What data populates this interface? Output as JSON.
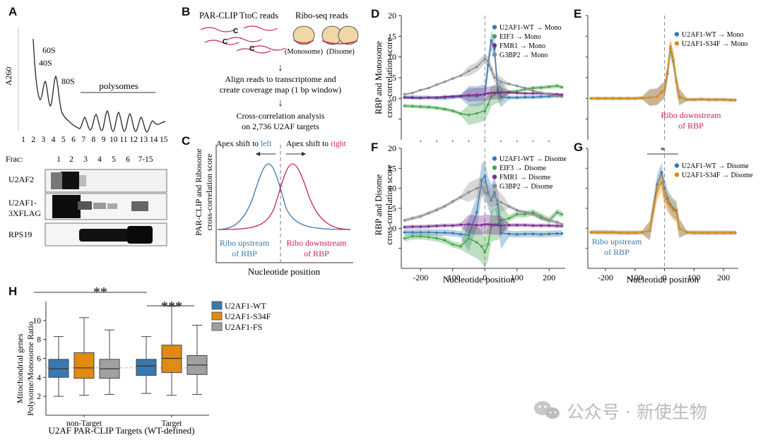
{
  "panels": {
    "A": {
      "letter": "A",
      "ylabel": "A260",
      "peaks": [
        "40S",
        "60S",
        "80S"
      ],
      "polysomes": "polysomes",
      "fractions_axis": [
        "1",
        "2",
        "3",
        "4",
        "5",
        "6",
        "7",
        "8",
        "9",
        "10",
        "11",
        "12",
        "13",
        "14",
        "15"
      ],
      "frac_label": "Frac:",
      "frac_cols": [
        "1",
        "2",
        "3",
        "4",
        "5",
        "6",
        "7-15"
      ],
      "blots": [
        "U2AF2",
        "U2AF1-\n3XFLAG",
        "RPS19"
      ],
      "blot_label_1a": "U2AF1-",
      "blot_label_1b": "3XFLAG"
    },
    "B": {
      "letter": "B",
      "parclip": "PAR-CLIP TtoC reads",
      "riboseq": "Ribo-seq reads",
      "c": "C",
      "monosome": "(Monosome)",
      "disome": "(Disome)",
      "arrow": "↓",
      "step1a": "Align reads to transcriptome and",
      "step1b": "create coverage map (1 bp window)",
      "step2a": "Cross-correlation analysis",
      "step2b": "on 2,736 U2AF targets"
    },
    "C": {
      "letter": "C",
      "left_shift": "Apex shift to ",
      "left_word": "left",
      "right_shift": "Apex shift to ",
      "right_word": "right",
      "ylabel1": "PAR-CLIP and Ribosome",
      "ylabel2": "cross-correlation score",
      "xlabel": "Nucleotide position",
      "up1": "Ribo upstream",
      "up2": "of RBP",
      "down1": "Ribo downstream",
      "down2": "of RBP"
    },
    "D": {
      "letter": "D",
      "ylabel1": "RBP and Monosome",
      "ylabel2": "cross-correlation score"
    },
    "E": {
      "letter": "E",
      "note1": "Ribo downstream",
      "note2": "of RBP"
    },
    "F": {
      "letter": "F",
      "ylabel1": "RBP and Disome",
      "ylabel2": "cross-correlation score",
      "xlabel": "Nucleotide position"
    },
    "G": {
      "letter": "G",
      "star": "*",
      "note1": "Ribo upstream",
      "note2": "of RBP",
      "xlabel": "Nucleotide position"
    },
    "H": {
      "letter": "H",
      "sig1": "**",
      "sig2": "***",
      "ylabel1": "Mitochondrial genes",
      "ylabel2": "Polysome/Monosome Ratio",
      "xlabel": "U2AF PAR-CLIP Targets (WT-defined)",
      "groups": [
        "non-Target",
        "Target"
      ]
    }
  },
  "colors": {
    "wt": "#3a78b0",
    "s34f": "#e08a12",
    "fs": "#a0a0a0",
    "eif3": "#46a54b",
    "fmr1": "#7b2d8e",
    "g3bp2": "#8c8c8c",
    "red": "#c8234e"
  },
  "watermark": "公众号 · 新使生物",
  "chart_data": [
    {
      "id": "D",
      "type": "line",
      "title": "",
      "xlabel": "",
      "ylabel": "RBP and Monosome cross-correlation score",
      "xlim": [
        -260,
        250
      ],
      "ylim": [
        -10,
        20
      ],
      "yticks": [
        0,
        5,
        10,
        15,
        20
      ],
      "x": [
        -250,
        -225,
        -200,
        -175,
        -150,
        -125,
        -100,
        -75,
        -50,
        -25,
        0,
        10,
        20,
        30,
        40,
        50,
        75,
        100,
        125,
        150,
        175,
        200,
        225,
        240
      ],
      "series": [
        {
          "name": "U2AF1-WT → Mono",
          "color": "#3a78b0",
          "values": [
            0.3,
            0.3,
            0.2,
            0.2,
            0.1,
            0.1,
            0.3,
            0.4,
            0.6,
            0.5,
            1,
            8,
            14,
            12,
            2,
            0.3,
            0.2,
            0.2,
            0.3,
            0.3,
            0.4,
            0.5,
            0.6,
            0.6
          ]
        },
        {
          "name": "EIF3 → Mono",
          "color": "#46a54b",
          "values": [
            -1.8,
            -1.9,
            -2,
            -2.1,
            -2.3,
            -2.6,
            -3,
            -3.7,
            -4,
            -3.6,
            -3,
            -1.5,
            0.5,
            1,
            1.3,
            1.5,
            1.6,
            1.7,
            2.2,
            2.5,
            2.6,
            2.8,
            3,
            2.7
          ]
        },
        {
          "name": "FMR1 → Mono",
          "color": "#7b2d8e",
          "values": [
            0.2,
            0.1,
            0.1,
            0.2,
            0.2,
            0.4,
            0.5,
            0.6,
            0.8,
            0.9,
            1,
            1.2,
            1.3,
            1.4,
            1.4,
            1.4,
            1.4,
            1.3,
            1.2,
            1.2,
            1.2,
            1.1,
            1,
            0.9
          ]
        },
        {
          "name": "G3BP2 → Mono",
          "color": "#8c8c8c",
          "values": [
            1,
            1.3,
            2,
            2.5,
            3.3,
            4,
            4.8,
            5.5,
            6.6,
            7.6,
            9.6,
            9,
            7,
            5,
            4.5,
            4,
            3.5,
            3,
            2.5,
            1.8,
            1.4,
            1,
            0.6,
            0.4
          ]
        }
      ]
    },
    {
      "id": "E",
      "type": "line",
      "xlim": [
        -260,
        250
      ],
      "ylim": [
        -10,
        20
      ],
      "x": [
        -250,
        -225,
        -200,
        -175,
        -150,
        -125,
        -100,
        -75,
        -50,
        -25,
        -10,
        0,
        10,
        20,
        30,
        40,
        50,
        75,
        100,
        125,
        150,
        175,
        200,
        225,
        240
      ],
      "series": [
        {
          "name": "U2AF1-WT → Mono",
          "color": "#3a78b0",
          "values": [
            0,
            0,
            0,
            0,
            0,
            0,
            0,
            0.1,
            0.2,
            0.4,
            1.5,
            2,
            6,
            12,
            9,
            4,
            0.3,
            -0.3,
            -0.3,
            -0.2,
            -0.3,
            -0.3,
            -0.3,
            -0.4,
            -0.4
          ]
        },
        {
          "name": "U2AF1-S34F → Mono",
          "color": "#e08a12",
          "values": [
            0,
            0,
            0,
            0,
            0,
            0,
            0,
            0.1,
            0.2,
            0.4,
            1.4,
            2,
            6.5,
            12.5,
            9.5,
            4,
            0.4,
            -0.3,
            -0.3,
            -0.2,
            -0.3,
            -0.3,
            -0.3,
            -0.4,
            -0.4
          ]
        }
      ]
    },
    {
      "id": "F",
      "type": "line",
      "xlabel": "Nucleotide position",
      "ylabel": "RBP and Disome cross-correlation score",
      "xlim": [
        -260,
        250
      ],
      "ylim": [
        -10,
        20
      ],
      "yticks": [
        0,
        5,
        10,
        15,
        20
      ],
      "xticks": [
        -200,
        -100,
        0,
        100,
        200
      ],
      "x": [
        -250,
        -225,
        -200,
        -175,
        -150,
        -125,
        -100,
        -75,
        -50,
        -25,
        -10,
        0,
        10,
        20,
        30,
        40,
        50,
        75,
        100,
        125,
        150,
        175,
        200,
        225,
        240
      ],
      "series": [
        {
          "name": "U2AF1-WT → Disome",
          "color": "#3a78b0",
          "values": [
            -1,
            -1,
            -1,
            -1,
            -1.1,
            -1.1,
            -1.2,
            -1.5,
            -1.7,
            4,
            12,
            13,
            9,
            7,
            9,
            6,
            -1.2,
            -1.4,
            -1.5,
            -1.4,
            -1.4,
            -1.5,
            -1.4,
            -1.3,
            -1.3
          ]
        },
        {
          "name": "EIF3 → Disome",
          "color": "#46a54b",
          "values": [
            -2.5,
            -2,
            -2,
            -2.2,
            -2.5,
            -3,
            -4,
            -4.5,
            -2.5,
            -3.5,
            -4.5,
            -6,
            -4,
            0.5,
            1,
            1,
            2,
            2.5,
            3.5,
            3.5,
            4,
            3,
            2,
            4,
            3.5
          ]
        },
        {
          "name": "FMR1 → Disome",
          "color": "#7b2d8e",
          "values": [
            0.3,
            0.4,
            0.4,
            0.5,
            0.6,
            0.7,
            0.7,
            0.9,
            1,
            0.8,
            0.8,
            1,
            1,
            0.9,
            0.8,
            0.8,
            0.7,
            0.8,
            0.8,
            0.8,
            0.7,
            0.7,
            0.7,
            0.6,
            0.6
          ]
        },
        {
          "name": "G3BP2 → Disome",
          "color": "#8c8c8c",
          "values": [
            2,
            2.5,
            3,
            3.8,
            4.6,
            5.5,
            6.7,
            7.8,
            9,
            10,
            10.5,
            9,
            8.5,
            7.5,
            8,
            7,
            6.5,
            5.5,
            4.5,
            4,
            3.5,
            2.5,
            2,
            1.5,
            1
          ]
        }
      ]
    },
    {
      "id": "G",
      "type": "line",
      "xlabel": "Nucleotide position",
      "xlim": [
        -260,
        250
      ],
      "ylim": [
        -10,
        20
      ],
      "xticks": [
        -200,
        -100,
        0,
        100,
        200
      ],
      "annotation": "*",
      "x": [
        -250,
        -225,
        -200,
        -175,
        -150,
        -125,
        -100,
        -75,
        -50,
        -25,
        -10,
        0,
        10,
        20,
        30,
        40,
        50,
        75,
        100,
        125,
        150,
        175,
        200,
        225,
        240
      ],
      "series": [
        {
          "name": "U2AF1-WT → Disome",
          "color": "#3a78b0",
          "values": [
            -1,
            -1,
            -1,
            -1,
            -1.1,
            -1.1,
            -1.1,
            -1,
            -0.6,
            11,
            14,
            10,
            7.5,
            6,
            5,
            4.5,
            0,
            -1,
            -1.1,
            -1.1,
            -1.1,
            -1.1,
            -1.1,
            -1.1,
            -1.1
          ]
        },
        {
          "name": "U2AF1-S34F → Disome",
          "color": "#e08a12",
          "values": [
            -1,
            -1,
            -1,
            -1,
            -1.1,
            -1.1,
            -1.1,
            -1,
            -0.6,
            9.5,
            11.5,
            8,
            6.5,
            5.5,
            4.5,
            4,
            0,
            -1,
            -1.1,
            -1.1,
            -1.1,
            -1.1,
            -1.1,
            -1.1,
            -1.1
          ]
        }
      ]
    },
    {
      "id": "H",
      "type": "box",
      "xlabel": "U2AF PAR-CLIP Targets (WT-defined)",
      "ylabel": "Mitochondrial genes Polysome/Monosome Ratio",
      "ylim": [
        0,
        12
      ],
      "yticks": [
        2,
        4,
        6,
        8,
        10
      ],
      "reference_line": 5,
      "categories": [
        "non-Target",
        "Target"
      ],
      "series": [
        {
          "name": "U2AF1-WT",
          "color": "#3a78b0",
          "boxes": [
            {
              "whisker_low": 2,
              "q1": 4,
              "median": 4.9,
              "q3": 5.9,
              "whisker_high": 8.3
            },
            {
              "whisker_low": 2.3,
              "q1": 4.2,
              "median": 5.2,
              "q3": 5.9,
              "whisker_high": 8.3
            }
          ]
        },
        {
          "name": "U2AF1-S34F",
          "color": "#e08a12",
          "boxes": [
            {
              "whisker_low": 2.1,
              "q1": 3.9,
              "median": 5,
              "q3": 6.6,
              "whisker_high": 10.3
            },
            {
              "whisker_low": 2.1,
              "q1": 4.5,
              "median": 6,
              "q3": 7.4,
              "whisker_high": 11.5
            }
          ]
        },
        {
          "name": "U2AF1-FS",
          "color": "#a0a0a0",
          "boxes": [
            {
              "whisker_low": 2.2,
              "q1": 3.9,
              "median": 4.9,
              "q3": 5.9,
              "whisker_high": 9
            },
            {
              "whisker_low": 2.2,
              "q1": 4.3,
              "median": 5.3,
              "q3": 6.3,
              "whisker_high": 9.5
            }
          ]
        }
      ]
    }
  ]
}
